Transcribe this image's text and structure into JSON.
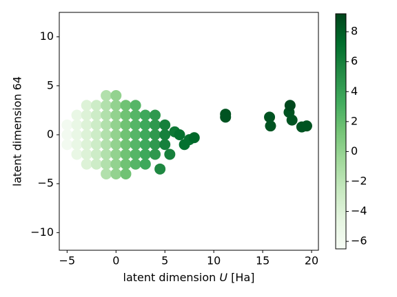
{
  "chart_data": {
    "type": "scatter",
    "xlabel": [
      "latent dimension ",
      "U",
      " [Ha]"
    ],
    "ylabel": "latent dimension 64",
    "xlim": [
      -5.8,
      20.7
    ],
    "ylim": [
      -11.8,
      12.5
    ],
    "xticks": [
      {
        "value": -5,
        "label": "−5"
      },
      0,
      5,
      10,
      15,
      20
    ],
    "yticks": [
      {
        "value": -10,
        "label": "−10"
      },
      {
        "value": -5,
        "label": "−5"
      },
      0,
      5,
      10
    ],
    "clim": [
      -6.5,
      9.2
    ],
    "cticks": [
      {
        "value": -6,
        "label": "−6"
      },
      {
        "value": -4,
        "label": "−4"
      },
      {
        "value": -2,
        "label": "−2"
      },
      0,
      2,
      4,
      6,
      8
    ],
    "colormap": [
      "#f7fcf5",
      "#e5f5e0",
      "#c7e9c0",
      "#a1d99b",
      "#74c476",
      "#41ab5d",
      "#238b45",
      "#006d2c",
      "#00441b"
    ],
    "x": [
      -5,
      -5,
      -5,
      -4,
      -4,
      -4,
      -4,
      -4,
      -3,
      -3,
      -3,
      -3,
      -3,
      -3,
      -3,
      -2,
      -2,
      -2,
      -2,
      -2,
      -2,
      -2,
      -1,
      -1,
      -1,
      -1,
      -1,
      -1,
      -1,
      -1,
      -1,
      0,
      0,
      0,
      0,
      0,
      0,
      0,
      0,
      0,
      1,
      1,
      1,
      1,
      1,
      1,
      1,
      1,
      2,
      2,
      2,
      2,
      2,
      2,
      2,
      3,
      3,
      3,
      3,
      3,
      3,
      4,
      4,
      4,
      4,
      4,
      5,
      5,
      5,
      5.5,
      6,
      6.5,
      7,
      7.5,
      8,
      4.5,
      11.2,
      11.2,
      15.7,
      15.8,
      17.7,
      17.8,
      18,
      19,
      19.5
    ],
    "y": [
      -1,
      0,
      1,
      -2,
      -1,
      0,
      1,
      2,
      -3,
      -2,
      -1,
      0,
      1,
      2,
      3,
      -3,
      -2,
      -1,
      0,
      1,
      2,
      3,
      -4,
      -3,
      -2,
      -1,
      0,
      1,
      2,
      3,
      4,
      -4,
      -3,
      -2,
      -1,
      0,
      1,
      2,
      3,
      4,
      -4,
      -3,
      -2,
      -1,
      0,
      1,
      2,
      3,
      -3,
      -2,
      -1,
      0,
      1,
      2,
      3,
      -3,
      -2,
      -1,
      0,
      1,
      2,
      -2,
      -1,
      0,
      1,
      2,
      -1,
      0,
      1,
      -2,
      0.3,
      0,
      -1,
      -0.5,
      -0.3,
      -3.5,
      2.1,
      1.8,
      1.8,
      0.9,
      2.3,
      3,
      1.5,
      0.8,
      0.9
    ],
    "values": [
      -6,
      -6,
      -6,
      -5,
      -5,
      -5,
      -5,
      -5,
      -4,
      -4,
      -4,
      -4,
      -4,
      -4,
      -4,
      -3,
      -3,
      -3,
      -3,
      -3,
      -3,
      -3,
      -1.5,
      -1.5,
      -1.5,
      -1.5,
      -1.5,
      -1.5,
      -1.5,
      -1.5,
      -1.5,
      0,
      0,
      0,
      0,
      0,
      0,
      0,
      0,
      0,
      1.5,
      1.5,
      1.5,
      1.5,
      1.5,
      1.5,
      1.5,
      1.5,
      2.5,
      2.5,
      2.5,
      2.5,
      2.5,
      2.5,
      2.5,
      3.5,
      3.5,
      3.5,
      3.5,
      3.5,
      3.5,
      4.5,
      4.5,
      4.5,
      4.5,
      4.5,
      6,
      6,
      6,
      6,
      6.5,
      7,
      7,
      7,
      7.5,
      5.5,
      8.5,
      8.5,
      8.5,
      8.5,
      8.5,
      9,
      8.5,
      8.5,
      8.5
    ]
  }
}
